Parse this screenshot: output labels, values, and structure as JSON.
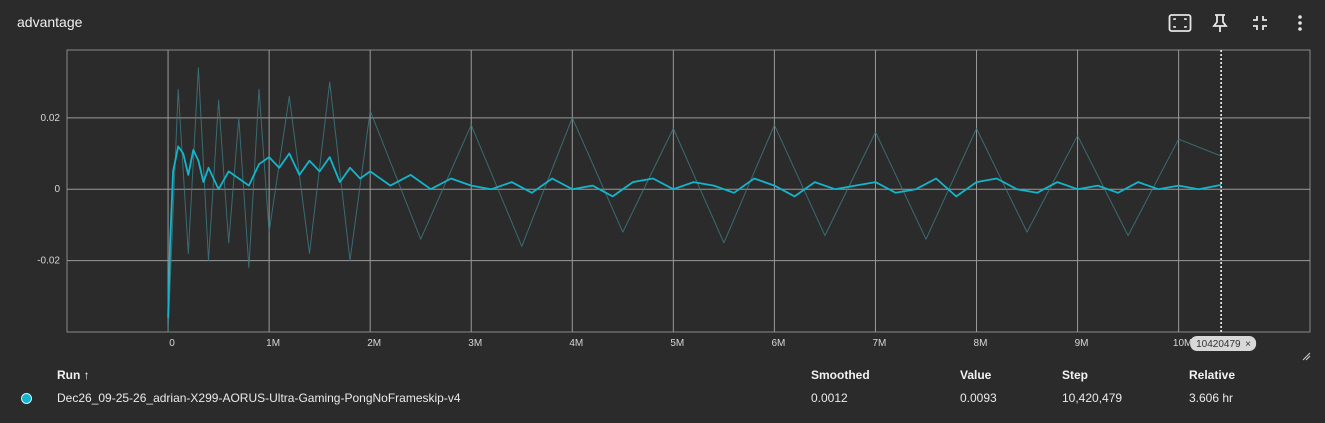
{
  "card": {
    "title": "advantage"
  },
  "toolbar": {
    "icons": [
      "fit-domain-icon",
      "pin-icon",
      "collapse-icon",
      "more-vert-icon"
    ]
  },
  "colors": {
    "series": "#12b5cb",
    "background": "#2b2b2b",
    "grid": "#9a9a9a"
  },
  "chart_data": {
    "type": "line",
    "xlim": [
      -1000000,
      11300000
    ],
    "ylim": [
      -0.04,
      0.039
    ],
    "x_ticks": [
      0,
      1000000,
      2000000,
      3000000,
      4000000,
      5000000,
      6000000,
      7000000,
      8000000,
      9000000,
      10000000
    ],
    "x_tick_labels": [
      "0",
      "1M",
      "2M",
      "3M",
      "4M",
      "5M",
      "6M",
      "7M",
      "8M",
      "9M",
      "10M"
    ],
    "y_ticks": [
      -0.02,
      0,
      0.02
    ],
    "y_tick_labels": [
      "-0.02",
      "0",
      "0.02"
    ],
    "grid": true,
    "hover_step": 10420479,
    "hover_label": "10420479",
    "series": [
      {
        "smoothed": true,
        "x": [
          0,
          20000,
          50000,
          100000,
          150000,
          200000,
          250000,
          300000,
          350000,
          400000,
          500000,
          600000,
          700000,
          800000,
          900000,
          1000000,
          1100000,
          1200000,
          1300000,
          1400000,
          1500000,
          1600000,
          1700000,
          1800000,
          1900000,
          2000000,
          2200000,
          2400000,
          2600000,
          2800000,
          3000000,
          3200000,
          3400000,
          3600000,
          3800000,
          4000000,
          4200000,
          4400000,
          4600000,
          4800000,
          5000000,
          5200000,
          5400000,
          5600000,
          5800000,
          6000000,
          6200000,
          6400000,
          6600000,
          6800000,
          7000000,
          7200000,
          7400000,
          7600000,
          7800000,
          8000000,
          8200000,
          8400000,
          8600000,
          8800000,
          9000000,
          9200000,
          9400000,
          9600000,
          9800000,
          10000000,
          10200000,
          10420479
        ],
        "y": [
          -0.036,
          -0.015,
          0.005,
          0.012,
          0.01,
          0.004,
          0.011,
          0.008,
          0.002,
          0.006,
          0.0,
          0.005,
          0.003,
          0.001,
          0.007,
          0.009,
          0.006,
          0.01,
          0.004,
          0.008,
          0.005,
          0.009,
          0.002,
          0.006,
          0.003,
          0.005,
          0.001,
          0.004,
          0.0,
          0.003,
          0.001,
          0.0,
          0.002,
          -0.001,
          0.003,
          0.0,
          0.001,
          -0.002,
          0.002,
          0.003,
          0.0,
          0.002,
          0.001,
          -0.001,
          0.003,
          0.001,
          -0.002,
          0.002,
          0.0,
          0.001,
          0.002,
          -0.001,
          0.0,
          0.003,
          -0.002,
          0.002,
          0.003,
          0.0,
          -0.001,
          0.002,
          0.0,
          0.001,
          -0.001,
          0.002,
          0.0,
          0.001,
          0.0,
          0.0012
        ]
      },
      {
        "smoothed": false,
        "x": [
          0,
          100000,
          200000,
          300000,
          400000,
          500000,
          600000,
          700000,
          800000,
          900000,
          1000000,
          1200000,
          1400000,
          1600000,
          1800000,
          2000000,
          2500000,
          3000000,
          3500000,
          4000000,
          4500000,
          5000000,
          5500000,
          6000000,
          6500000,
          7000000,
          7500000,
          8000000,
          8500000,
          9000000,
          9500000,
          10000000,
          10420479
        ],
        "y": [
          -0.04,
          0.028,
          -0.018,
          0.034,
          -0.02,
          0.025,
          -0.015,
          0.02,
          -0.022,
          0.028,
          -0.012,
          0.026,
          -0.018,
          0.03,
          -0.02,
          0.022,
          -0.014,
          0.018,
          -0.016,
          0.02,
          -0.012,
          0.017,
          -0.015,
          0.018,
          -0.013,
          0.016,
          -0.014,
          0.017,
          -0.012,
          0.015,
          -0.013,
          0.014,
          0.0093
        ]
      }
    ]
  },
  "legend": {
    "headers": {
      "run": "Run ↑",
      "smoothed": "Smoothed",
      "value": "Value",
      "step": "Step",
      "relative": "Relative"
    },
    "rows": [
      {
        "run": "Dec26_09-25-26_adrian-X299-AORUS-Ultra-Gaming-PongNoFrameskip-v4",
        "smoothed": "0.0012",
        "value": "0.0093",
        "step": "10,420,479",
        "relative": "3.606 hr"
      }
    ]
  }
}
